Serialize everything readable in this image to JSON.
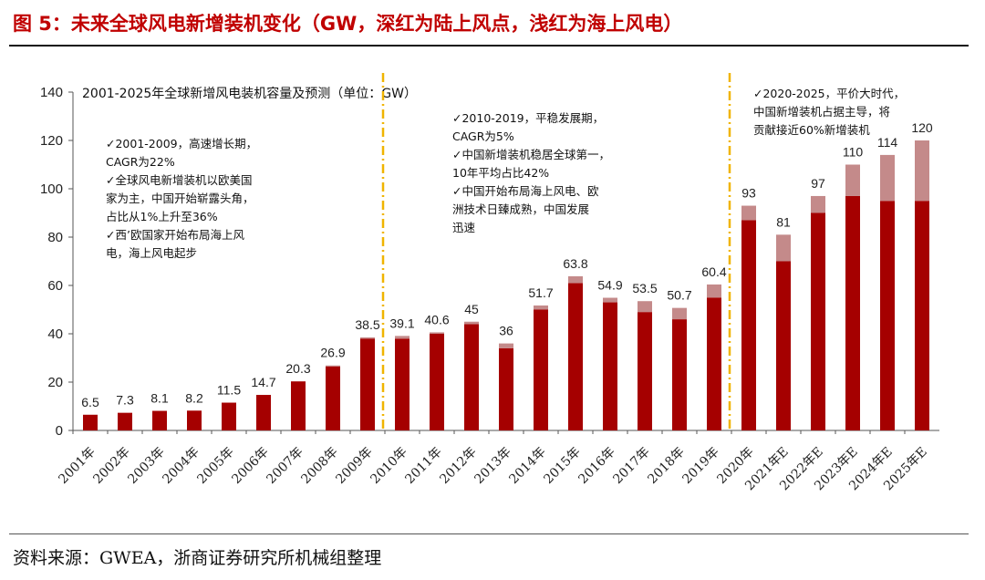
{
  "figure_title": "图 5：未来全球风电新增装机变化（GW，深红为陆上风点，浅红为海上风电）",
  "source_note": "资料来源：GWEA，浙商证券研究所机械组整理",
  "colors": {
    "onshore": "#a50000",
    "offshore": "#c48a8a",
    "divider": "#f0b400",
    "title_red": "#c00000"
  },
  "chart_data": {
    "type": "bar",
    "stacked": true,
    "title": "2001-2025年全球新增风电装机容量及预测（单位：GW）",
    "xlabel": "",
    "ylabel": "",
    "ylim": [
      0,
      140
    ],
    "yticks": [
      0,
      20,
      40,
      60,
      80,
      100,
      120,
      140
    ],
    "categories": [
      "2001年",
      "2002年",
      "2003年",
      "2004年",
      "2005年",
      "2006年",
      "2007年",
      "2008年",
      "2009年",
      "2010年",
      "2011年",
      "2012年",
      "2013年",
      "2014年",
      "2015年",
      "2016年",
      "2017年",
      "2018年",
      "2019年",
      "2020年",
      "2021年E",
      "2022年E",
      "2023年E",
      "2024年E",
      "2025年E"
    ],
    "series": [
      {
        "name": "陆上风电",
        "values": [
          6.5,
          7.3,
          8.1,
          8.2,
          11.5,
          14.7,
          20.3,
          26.5,
          38,
          38,
          40,
          44,
          34,
          50,
          61,
          53,
          49,
          46,
          55,
          87,
          70,
          90,
          97,
          95,
          95
        ]
      },
      {
        "name": "海上风电",
        "values": [
          0,
          0,
          0,
          0,
          0,
          0,
          0,
          0.4,
          0.5,
          1.1,
          0.6,
          1,
          2,
          1.7,
          2.8,
          1.9,
          4.5,
          4.7,
          5.4,
          6,
          11,
          7,
          13,
          19,
          25
        ]
      }
    ],
    "totals": [
      "6.5",
      "7.3",
      "8.1",
      "8.2",
      "11.5",
      "14.7",
      "20.3",
      "26.9",
      "38.5",
      "39.1",
      "40.6",
      "45",
      "36",
      "51.7",
      "63.8",
      "54.9",
      "53.5",
      "50.7",
      "60.4",
      "93",
      "81",
      "97",
      "110",
      "114",
      "120"
    ],
    "dividers_after": [
      "2009年",
      "2019年"
    ],
    "annotations": [
      [
        "✓2001-2009，高速增长期，",
        "CAGR为22%",
        "✓全球风电新增装机以欧美国",
        "家为主，中国开始崭露头角，",
        "占比从1%上升至36%",
        "✓西’欧国家开始布局海上风",
        "电，海上风电起步"
      ],
      [
        "✓2010-2019，平稳发展期，",
        "CAGR为5%",
        "✓中国新增装机稳居全球第一，",
        "10年平均占比42%",
        "✓中国开始布局海上风电、欧",
        "洲技术日臻成熟，中国发展",
        "迅速"
      ],
      [
        "✓2020-2025，平价大时代，",
        "中国新增装机占据主导，将",
        "贡献接近60%新增装机"
      ]
    ]
  }
}
